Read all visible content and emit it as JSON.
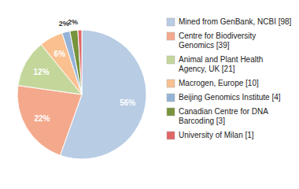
{
  "chart_data": {
    "type": "pie",
    "categories": [
      "Mined from GenBank, NCBI [98]",
      "Centre for Biodiversity\nGenomics [39]",
      "Animal and Plant Health\nAgency, UK [21]",
      "Macrogen, Europe [10]",
      "Beijing Genomics Institute [4]",
      "Canadian Centre for DNA\nBarcoding [3]",
      "University of Milan [1]"
    ],
    "values": [
      56,
      22,
      12,
      6,
      2,
      2,
      1
    ],
    "value_labels": [
      "56%",
      "22%",
      "12%",
      "6%",
      "2%",
      "2%",
      null
    ],
    "colors": [
      "#b8cce4",
      "#f4a98c",
      "#c4d79b",
      "#fac090",
      "#95b3d7",
      "#77933c",
      "#e06666"
    ],
    "data_labels": true,
    "legend": "upper right"
  }
}
